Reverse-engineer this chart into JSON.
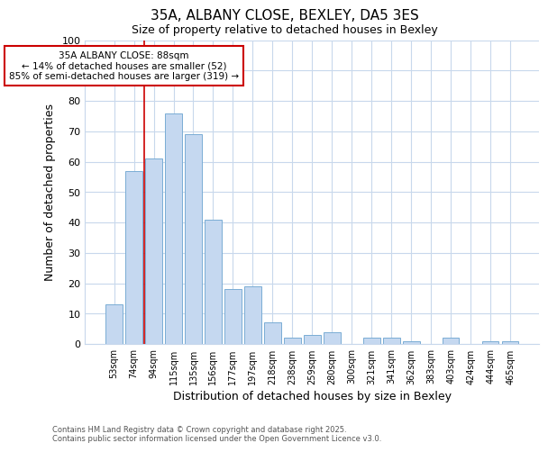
{
  "title1": "35A, ALBANY CLOSE, BEXLEY, DA5 3ES",
  "title2": "Size of property relative to detached houses in Bexley",
  "xlabel": "Distribution of detached houses by size in Bexley",
  "ylabel": "Number of detached properties",
  "categories": [
    "53sqm",
    "74sqm",
    "94sqm",
    "115sqm",
    "135sqm",
    "156sqm",
    "177sqm",
    "197sqm",
    "218sqm",
    "238sqm",
    "259sqm",
    "280sqm",
    "300sqm",
    "321sqm",
    "341sqm",
    "362sqm",
    "383sqm",
    "403sqm",
    "424sqm",
    "444sqm",
    "465sqm"
  ],
  "values": [
    13,
    57,
    61,
    76,
    69,
    41,
    18,
    19,
    7,
    2,
    3,
    4,
    0,
    2,
    2,
    1,
    0,
    2,
    0,
    1,
    1
  ],
  "bar_color": "#c5d8f0",
  "bar_edge_color": "#7aadd4",
  "vline_color": "#cc0000",
  "vline_x": 1.5,
  "annotation_text": "35A ALBANY CLOSE: 88sqm\n← 14% of detached houses are smaller (52)\n85% of semi-detached houses are larger (319) →",
  "annotation_box_color": "#ffffff",
  "annotation_box_edge": "#cc0000",
  "ylim": [
    0,
    100
  ],
  "yticks": [
    0,
    10,
    20,
    30,
    40,
    50,
    60,
    70,
    80,
    90,
    100
  ],
  "footer1": "Contains HM Land Registry data © Crown copyright and database right 2025.",
  "footer2": "Contains public sector information licensed under the Open Government Licence v3.0.",
  "bg_color": "#ffffff",
  "plot_bg_color": "#ffffff",
  "grid_color": "#c8d8ec"
}
